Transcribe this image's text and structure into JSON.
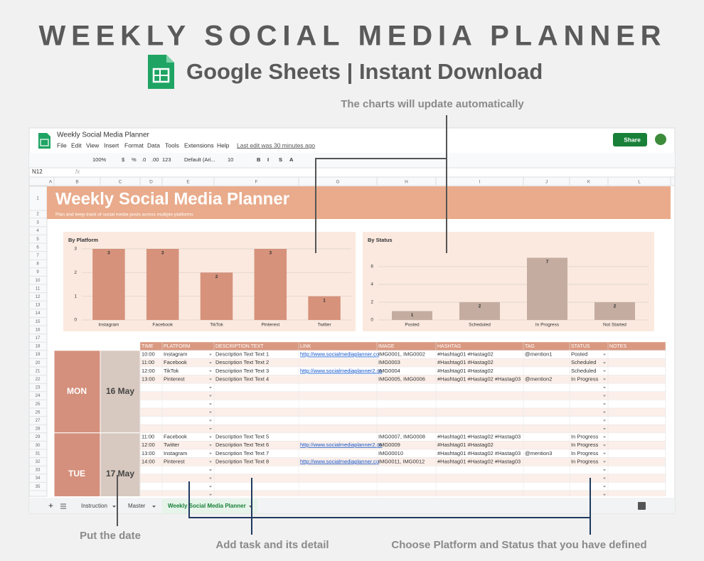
{
  "header": {
    "title": "WEEKLY SOCIAL MEDIA PLANNER",
    "subtitle": "Google Sheets | Instant Download"
  },
  "annotations": {
    "top": "The charts will update automatically",
    "date": "Put the date",
    "task": "Add task and its detail",
    "choose": "Choose Platform and Status that you have defined"
  },
  "sheet": {
    "doc_title": "Weekly Social Media Planner",
    "menu": [
      "File",
      "Edit",
      "View",
      "Insert",
      "Format",
      "Data",
      "Tools",
      "Extensions",
      "Help"
    ],
    "last_edit": "Last edit was 30 minutes ago",
    "share": "Share",
    "toolbar": [
      "100%",
      "$",
      "%",
      ".0",
      ".00",
      "123",
      "Default (Ari...",
      "10",
      "B",
      "I",
      "S",
      "A"
    ],
    "cell_ref": "N12",
    "fx": "fx",
    "columns": [
      "A",
      "B",
      "C",
      "D",
      "E",
      "F",
      "G",
      "H",
      "I",
      "J",
      "K",
      "L"
    ],
    "rows": [
      1,
      2,
      3,
      4,
      5,
      6,
      7,
      8,
      9,
      10,
      11,
      12,
      13,
      14,
      15,
      16,
      17,
      18,
      19,
      20,
      21,
      22,
      23,
      24,
      25,
      26,
      27,
      28,
      29,
      30,
      31,
      32,
      33,
      34,
      35
    ],
    "banner_title": "Weekly Social Media Planner",
    "banner_subtitle": "Plan and keep track of social media posts across multiple platforms",
    "tabs": [
      "Instruction",
      "Master",
      "Weekly Social Media Planner"
    ]
  },
  "chart_data": [
    {
      "type": "bar",
      "title": "By Platform",
      "categories": [
        "Instagram",
        "Facebook",
        "TikTok",
        "Pinterest",
        "Twitter"
      ],
      "values": [
        3,
        3,
        2,
        3,
        1
      ],
      "color": "#d6927b",
      "ylim": [
        0,
        3
      ],
      "yticks": [
        0,
        1,
        2,
        3
      ],
      "grid": true
    },
    {
      "type": "bar",
      "title": "By Status",
      "categories": [
        "Posted",
        "Scheduled",
        "In Progress",
        "Not Started"
      ],
      "values": [
        1,
        2,
        7,
        2
      ],
      "color": "#c4ada0",
      "ylim": [
        0,
        8
      ],
      "yticks": [
        0,
        2,
        4,
        6
      ],
      "grid": true
    }
  ],
  "table": {
    "columns": [
      "TIME",
      "PLATFORM",
      "DESCRIPTION TEXT",
      "LINK",
      "IMAGE",
      "HASHTAG",
      "TAG",
      "STATUS",
      "NOTES"
    ],
    "days": [
      {
        "day": "MON",
        "date": "16 May",
        "rows": [
          [
            "10:00",
            "Instagram",
            "Description Text Text 1",
            "http://www.socialmediaplanner.co",
            "IMG0001, IMG0002",
            "#Hashtag01 #Hastag02",
            "@mention1",
            "Posted"
          ],
          [
            "11:00",
            "Facebook",
            "Description Text Text 2",
            null,
            "IMG0003",
            "#Hashtag01 #Hastag02",
            null,
            "Scheduled"
          ],
          [
            "12:00",
            "TikTok",
            "Description Text Text 3",
            "http://www.socialmediaplanner2.co",
            "IMG0004",
            "#Hashtag01 #Hastag02",
            null,
            "Scheduled"
          ],
          [
            "13:00",
            "Pinterest",
            "Description Text Text 4",
            null,
            "IMG0005, IMG0006",
            "#Hashtag01 #Hastag02 #Hastag03",
            "@mention2",
            "In Progress"
          ]
        ]
      },
      {
        "day": "TUE",
        "date": "17 May",
        "rows": [
          [
            "11:00",
            "Facebook",
            "Description Text Text 5",
            null,
            "IMG0007, IMG0008",
            "#Hashtag01 #Hastag02 #Hastag03",
            null,
            "In Progress"
          ],
          [
            "12:00",
            "Twitter",
            "Description Text Text 6",
            "http://www.socialmediaplanner2.co",
            "IMG0009",
            "#Hashtag01 #Hastag02",
            null,
            "In Progress"
          ],
          [
            "13:00",
            "Instagram",
            "Description Text Text 7",
            null,
            "IMG00010",
            "#Hashtag01 #Hastag02 #Hastag03",
            "@mention3",
            "In Progress"
          ],
          [
            "14:00",
            "Pinterest",
            "Description Text Text 8",
            "http://www.socialmediaplanner.co",
            "IMG0011, IMG0012",
            "#Hashtag01 #Hastag02 #Hastag03",
            null,
            "In Progress"
          ]
        ]
      }
    ]
  }
}
